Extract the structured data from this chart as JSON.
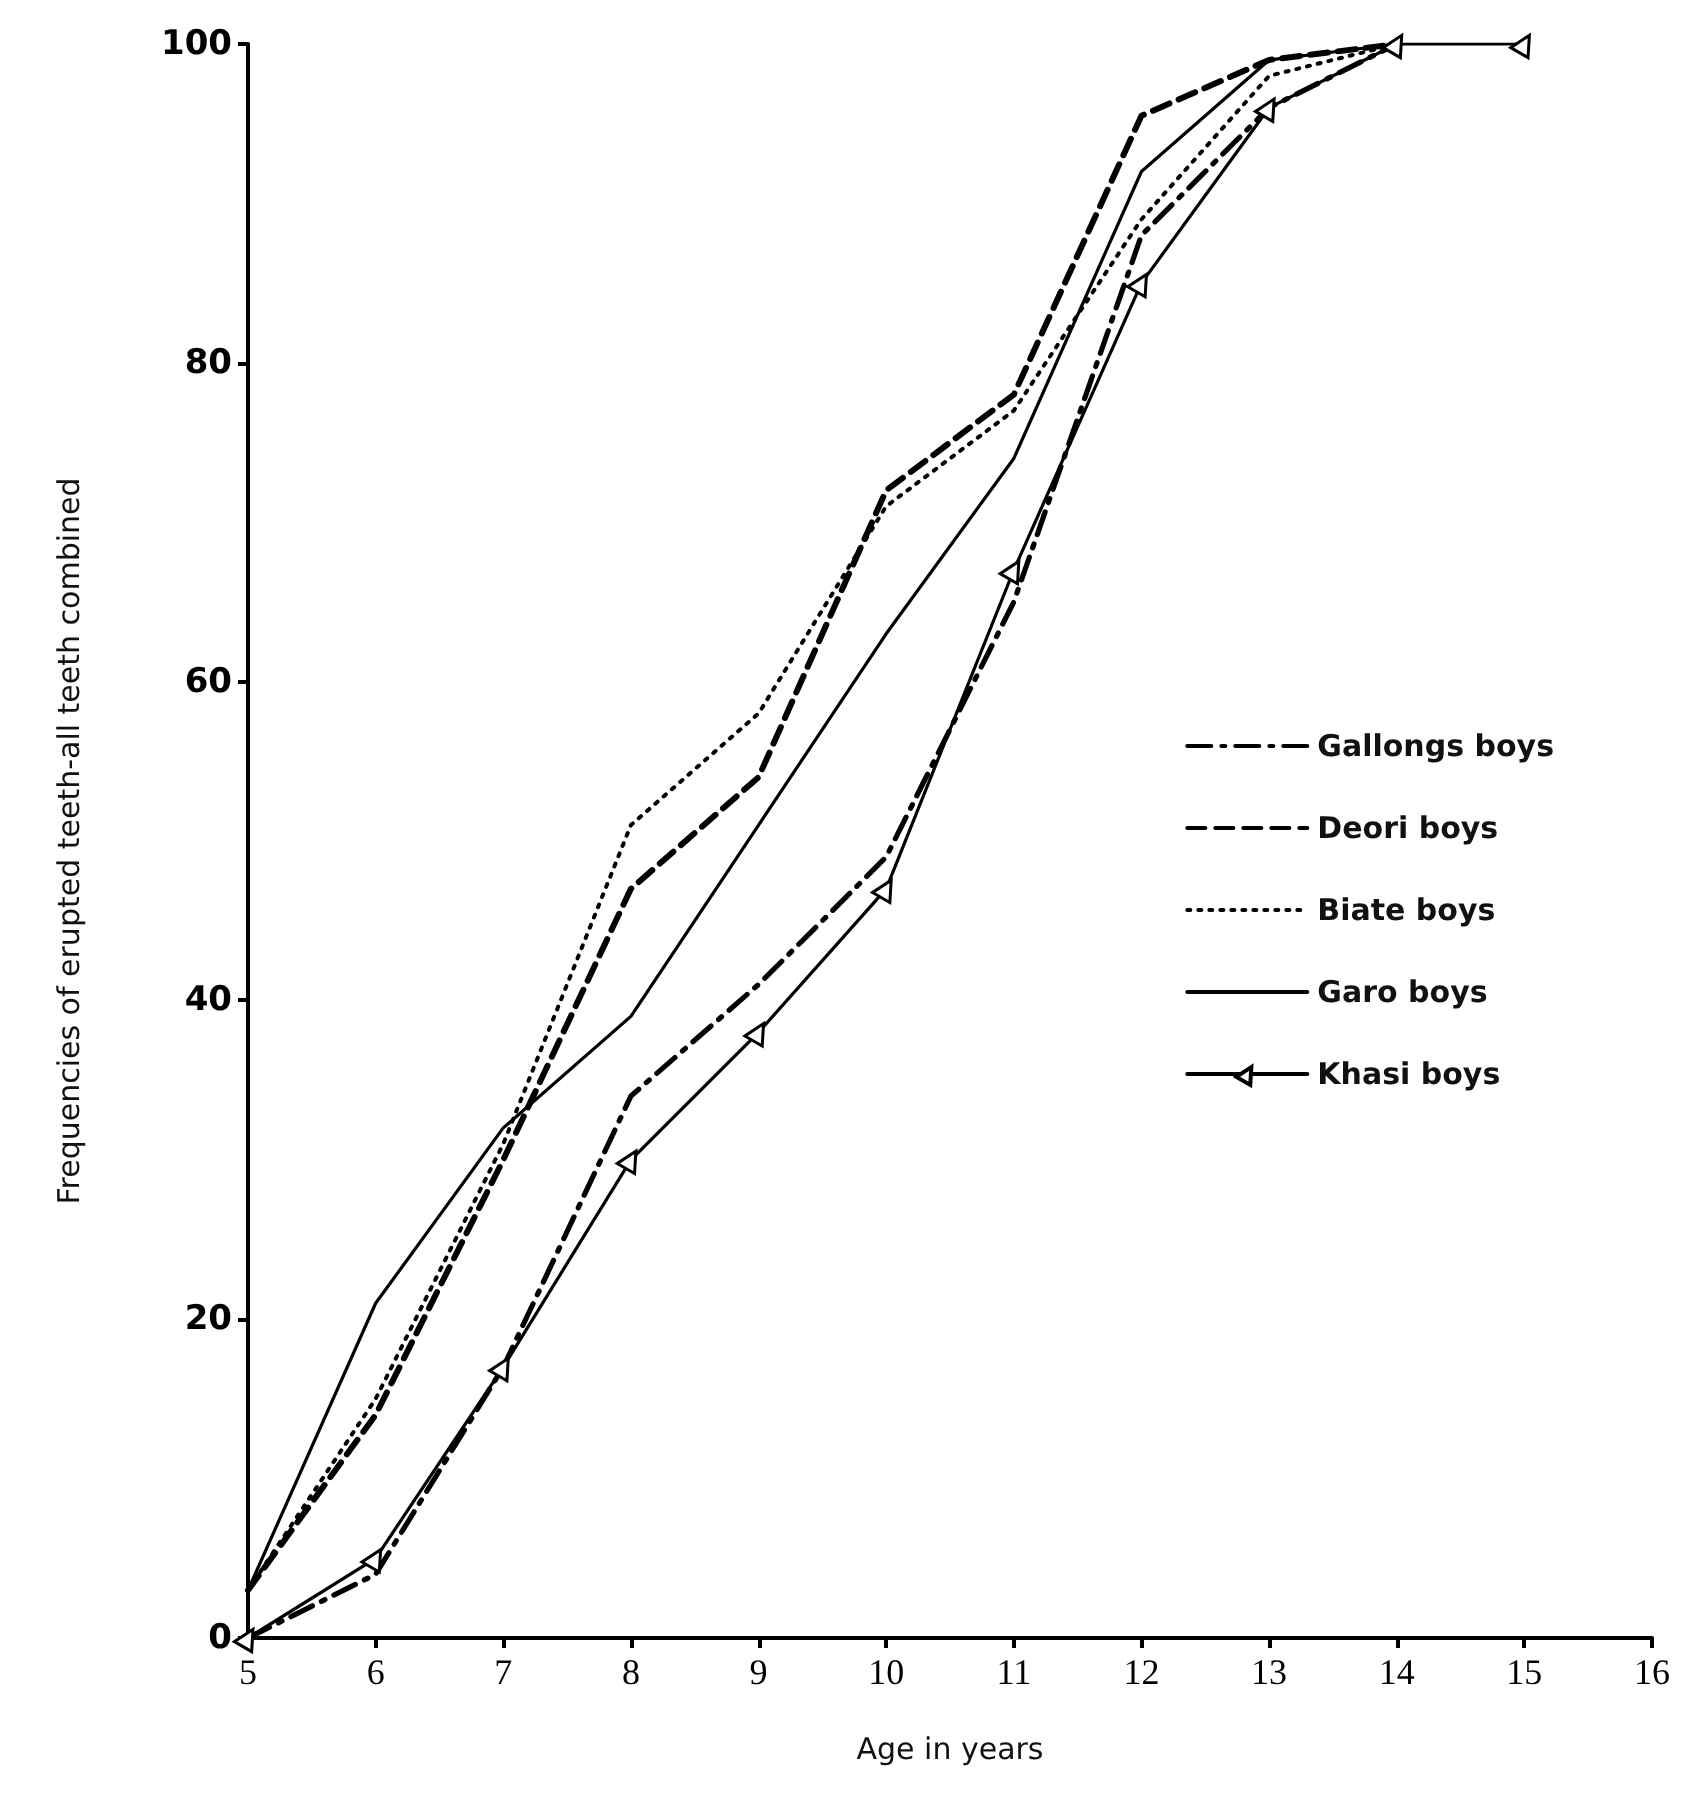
{
  "chart_data": {
    "type": "line",
    "xlabel": "Age in years",
    "ylabel": "Frequencies of erupted teeth-all teeth combined",
    "x": [
      5,
      6,
      7,
      8,
      9,
      10,
      11,
      12,
      13,
      14
    ],
    "series": [
      {
        "name": "Gallongs boys",
        "color": "#000000",
        "line_style": "dashdot",
        "marker": "none",
        "values": [
          0,
          4,
          17,
          34,
          41,
          49,
          65,
          88,
          96,
          100
        ]
      },
      {
        "name": "Deori boys",
        "color": "#000000",
        "line_style": "dashed",
        "marker": "none",
        "values": [
          3,
          14,
          30,
          47,
          54,
          72,
          78,
          95.5,
          99,
          100
        ]
      },
      {
        "name": "Biate boys",
        "color": "#000000",
        "line_style": "dotted",
        "marker": "none",
        "values": [
          3,
          15,
          31,
          51,
          58,
          71,
          77,
          89,
          98,
          100
        ]
      },
      {
        "name": "Garo boys",
        "color": "#000000",
        "line_style": "solid",
        "marker": "none",
        "values": [
          3,
          21,
          32,
          39,
          51,
          63,
          74,
          92,
          99,
          100
        ]
      },
      {
        "name": "Khasi boys",
        "color": "#000000",
        "line_style": "solid",
        "marker": "triangle",
        "x": [
          5,
          6,
          7,
          8,
          9,
          10,
          11,
          12,
          13,
          14,
          15
        ],
        "values": [
          0,
          5,
          17,
          30,
          38,
          47,
          67,
          85,
          96,
          100,
          100
        ]
      }
    ],
    "xlim": [
      5,
      16
    ],
    "xticks": [
      5,
      6,
      7,
      8,
      9,
      10,
      11,
      12,
      13,
      14,
      15,
      16
    ],
    "ylim": [
      0,
      100
    ],
    "yticks": [
      0,
      20,
      40,
      60,
      80,
      100
    ],
    "grid": false,
    "legend": "right"
  }
}
